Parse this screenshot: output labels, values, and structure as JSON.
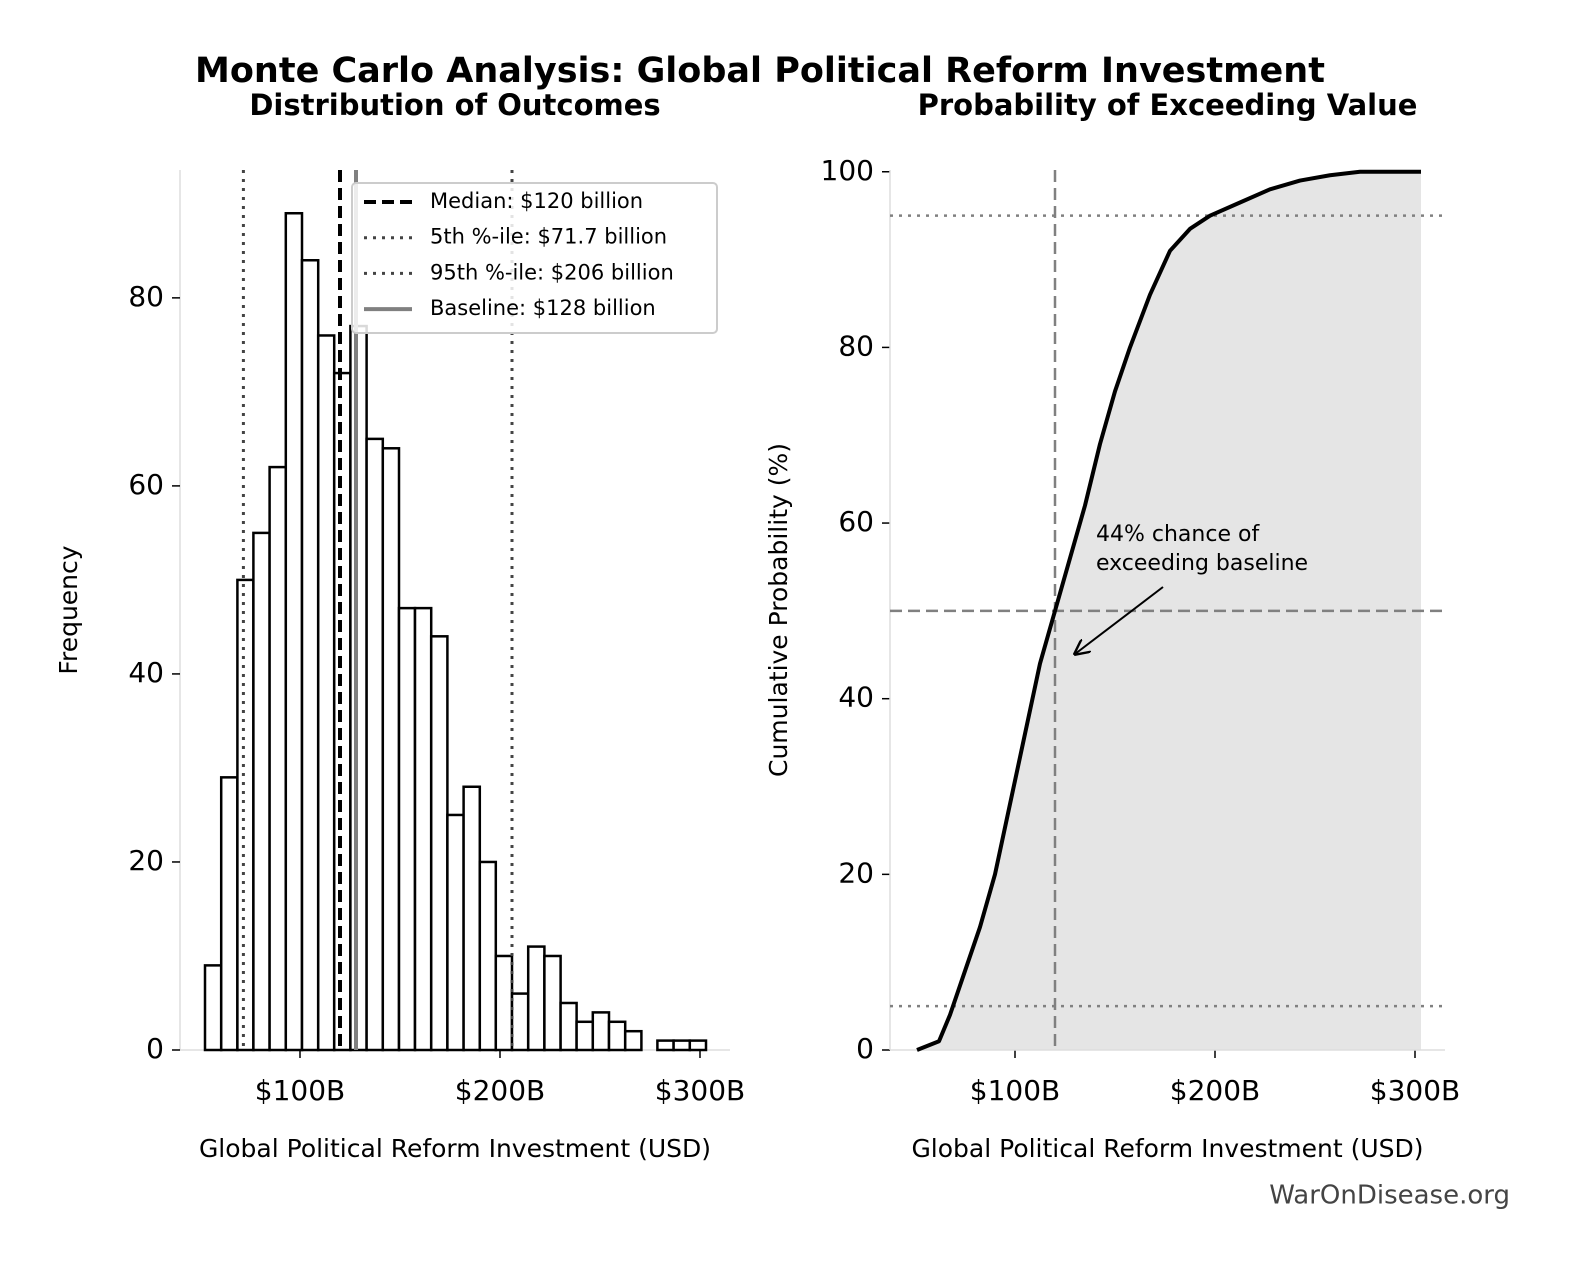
{
  "title": "Monte Carlo Analysis: Global Political Reform Investment",
  "footer": "WarOnDisease.org",
  "chart_data": [
    {
      "type": "histogram",
      "title": "Distribution of Outcomes",
      "x_label": "Global Political Reform Investment (USD)",
      "y_label": "Frequency",
      "bins": [
        52.5,
        60.6,
        68.7,
        76.7,
        84.8,
        92.9,
        101.0,
        109.1,
        117.1,
        125.2,
        133.3,
        141.4,
        149.5,
        157.5,
        165.6,
        173.7,
        181.8,
        189.9,
        197.9,
        206.0,
        214.1,
        222.2,
        230.3,
        238.3,
        246.4,
        254.5,
        262.6,
        270.7,
        278.7,
        286.8,
        294.9,
        303.0
      ],
      "values": [
        9,
        29,
        50,
        55,
        62,
        89,
        84,
        76,
        72,
        77,
        65,
        64,
        47,
        47,
        44,
        25,
        28,
        20,
        10,
        6,
        11,
        10,
        5,
        3,
        4,
        3,
        2,
        0,
        1,
        1,
        1
      ],
      "color": "#ffffff",
      "edgecolor": "#000000",
      "xlim": [
        40,
        315
      ],
      "ylim": [
        0,
        93.6
      ],
      "xticks": [
        {
          "value": 100,
          "label": "$100B"
        },
        {
          "value": 200,
          "label": "$200B"
        },
        {
          "value": 300,
          "label": "$300B"
        }
      ],
      "yticks": [
        0,
        20,
        40,
        60,
        80
      ],
      "legend": "upper right",
      "reference_lines": [
        {
          "name": "Median: $120 billion",
          "value": 120,
          "style": "dashed",
          "color": "#000000"
        },
        {
          "name": "5th %-ile: $71.7 billion",
          "value": 71.7,
          "style": "dotted",
          "color": "#444444"
        },
        {
          "name": "95th %-ile: $206 billion",
          "value": 206,
          "style": "dotted",
          "color": "#444444"
        },
        {
          "name": "Baseline: $128 billion",
          "value": 128,
          "style": "solid",
          "color": "#808080"
        }
      ]
    },
    {
      "type": "line",
      "title": "Probability of Exceeding Value",
      "x_label": "Global Political Reform Investment (USD)",
      "y_label": "Cumulative Probability (%)",
      "x": [
        51,
        62,
        67.5,
        75,
        82.5,
        90,
        97.5,
        105,
        112.5,
        120,
        127.5,
        135,
        142.5,
        150,
        157.5,
        167.5,
        177.5,
        187.5,
        197.5,
        212.5,
        227.5,
        242.5,
        257.5,
        272.5,
        303
      ],
      "values": [
        0,
        1,
        4,
        9,
        14,
        20,
        28,
        36,
        44,
        50,
        56,
        62,
        69,
        75,
        80,
        86,
        91,
        93.5,
        95,
        96.5,
        98,
        99,
        99.6,
        100,
        100
      ],
      "color": "#000000",
      "fill": "#e5e5e5",
      "xlim": [
        37.5,
        315
      ],
      "ylim": [
        0,
        100.2
      ],
      "xticks": [
        {
          "value": 100,
          "label": "$100B"
        },
        {
          "value": 200,
          "label": "$200B"
        },
        {
          "value": 300,
          "label": "$300B"
        }
      ],
      "yticks": [
        0,
        20,
        40,
        60,
        80,
        100
      ],
      "reference_lines": [
        {
          "axis": "y",
          "value": 5,
          "style": "dotted",
          "color": "#808080"
        },
        {
          "axis": "y",
          "value": 50,
          "style": "dashed",
          "color": "#808080"
        },
        {
          "axis": "y",
          "value": 95,
          "style": "dotted",
          "color": "#808080"
        },
        {
          "axis": "x",
          "value": 120,
          "style": "dashed",
          "color": "#808080"
        }
      ],
      "annotation": [
        "44% chance of",
        "exceeding baseline"
      ]
    }
  ]
}
